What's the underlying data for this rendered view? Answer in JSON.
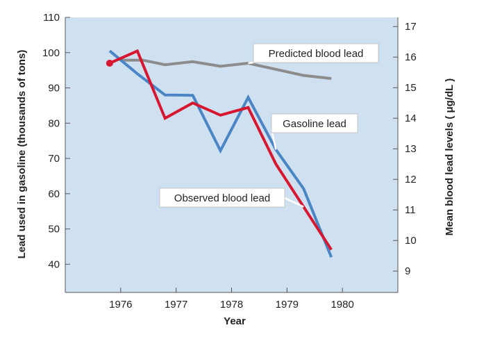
{
  "chart_data": {
    "type": "line",
    "xlabel": "Year",
    "ylabel_left": "Lead used in gasoline (thousands of tons)",
    "ylabel_right": "Mean blood lead levels ( μg/dL )",
    "x_ticks": [
      "1976",
      "1977",
      "1978",
      "1979",
      "1980"
    ],
    "xlim": [
      1975.0,
      1981.0
    ],
    "ylim_left": [
      32,
      110
    ],
    "ylim_right": [
      8.3,
      17.3
    ],
    "y_ticks_left": [
      40,
      50,
      60,
      70,
      80,
      90,
      100,
      110
    ],
    "y_ticks_right": [
      9,
      10,
      11,
      12,
      13,
      14,
      15,
      16,
      17
    ],
    "grid": false,
    "background": "#cfe0f1",
    "series": [
      {
        "name": "Predicted blood lead",
        "axis": "right",
        "color": "#8c8c8c",
        "x": [
          1976.0,
          1976.4,
          1976.8,
          1977.3,
          1977.8,
          1978.3,
          1978.8,
          1979.3,
          1979.8
        ],
        "values": [
          15.9,
          15.9,
          15.75,
          15.85,
          15.7,
          15.8,
          15.6,
          15.4,
          15.3
        ]
      },
      {
        "name": "Gasoline lead",
        "axis": "left",
        "color": "#4a86c5",
        "x": [
          1975.8,
          1976.3,
          1976.8,
          1977.3,
          1977.8,
          1978.3,
          1978.8,
          1979.3,
          1979.8
        ],
        "values": [
          100.5,
          94,
          88,
          87.9,
          72.2,
          87.3,
          72.5,
          61.4,
          42
        ]
      },
      {
        "name": "Observed blood lead",
        "axis": "right",
        "color": "#d7162f",
        "x": [
          1975.8,
          1976.3,
          1976.8,
          1977.3,
          1977.8,
          1978.3,
          1978.8,
          1979.3,
          1979.8
        ],
        "values": [
          15.8,
          16.2,
          14.0,
          14.5,
          14.1,
          14.35,
          12.5,
          11.1,
          9.7
        ]
      }
    ],
    "annotations": [
      {
        "text": "Predicted blood lead",
        "series": "Predicted blood lead"
      },
      {
        "text": "Gasoline lead",
        "series": "Gasoline lead"
      },
      {
        "text": "Observed blood lead",
        "series": "Observed blood lead"
      }
    ]
  }
}
